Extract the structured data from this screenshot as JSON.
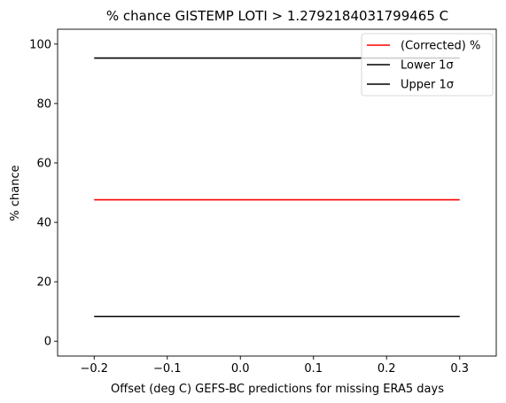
{
  "chart_data": {
    "type": "line",
    "title": "% chance GISTEMP LOTI > 1.2792184031799465 C",
    "xlabel": "Offset (deg C) GEFS-BC predictions for missing ERA5 days",
    "ylabel": "% chance",
    "xlim": [
      -0.25,
      0.35
    ],
    "ylim": [
      -5,
      105
    ],
    "xticks": [
      -0.2,
      -0.1,
      0.0,
      0.1,
      0.2,
      0.3
    ],
    "xtick_labels": [
      "−0.2",
      "−0.1",
      "0.0",
      "0.1",
      "0.2",
      "0.3"
    ],
    "yticks": [
      0,
      20,
      40,
      60,
      80,
      100
    ],
    "ytick_labels": [
      "0",
      "20",
      "40",
      "60",
      "80",
      "100"
    ],
    "grid": false,
    "legend_position": "top-right",
    "series": [
      {
        "name": "(Corrected) %",
        "color": "#ff0000",
        "x": [
          -0.2,
          0.3
        ],
        "y": [
          47.6,
          47.6
        ]
      },
      {
        "name": "Lower 1σ",
        "color": "#000000",
        "x": [
          -0.2,
          0.3
        ],
        "y": [
          8.3,
          8.3
        ]
      },
      {
        "name": "Upper 1σ",
        "color": "#000000",
        "x": [
          -0.2,
          0.3
        ],
        "y": [
          95.3,
          95.3
        ]
      }
    ]
  }
}
